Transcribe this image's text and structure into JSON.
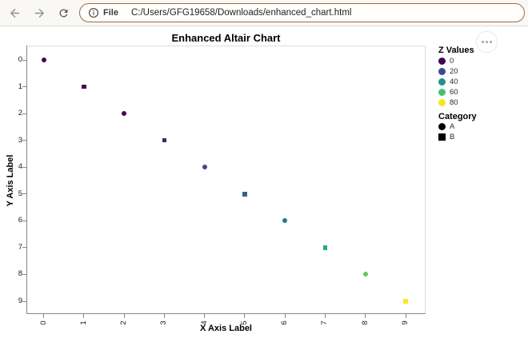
{
  "browser": {
    "toolbar": {
      "icons": {
        "back": "←",
        "forward": "→",
        "refresh": "⟳"
      },
      "address_bar": {
        "scheme_icon": "ⓘ",
        "scheme_label": "File",
        "url": "C:/Users/GFG19658/Downloads/enhanced_chart.html",
        "border_color": "#9E6B44"
      }
    }
  },
  "chart_actions": {
    "icon": "···",
    "name": "vega-options-menu"
  },
  "chart_data": {
    "type": "scatter",
    "title": "Enhanced Altair Chart",
    "xlabel": "X Axis Label",
    "ylabel": "Y Axis Label",
    "x_ticks": [
      "0",
      "1",
      "2",
      "3",
      "4",
      "5",
      "6",
      "7",
      "8",
      "9"
    ],
    "y_ticks": [
      "0",
      "1",
      "2",
      "3",
      "4",
      "5",
      "6",
      "7",
      "8",
      "9"
    ],
    "layout": {
      "y_inverted": true,
      "grid": false,
      "legend_position": "right",
      "x_tick_label_angle": -90,
      "view_border_color": "#dddddd",
      "axis_color": "#888888"
    },
    "points": [
      {
        "x": 0,
        "y": 0,
        "category": "A",
        "shape": "circle",
        "color": "#440154"
      },
      {
        "x": 1,
        "y": 1,
        "category": "B",
        "shape": "square",
        "color": "#450559"
      },
      {
        "x": 2,
        "y": 2,
        "category": "A",
        "shape": "circle",
        "color": "#46085C"
      },
      {
        "x": 3,
        "y": 3,
        "category": "B",
        "shape": "square",
        "color": "#482475"
      },
      {
        "x": 4,
        "y": 4,
        "category": "A",
        "shape": "circle",
        "color": "#404688"
      },
      {
        "x": 5,
        "y": 5,
        "category": "B",
        "shape": "square",
        "color": "#35608D"
      },
      {
        "x": 6,
        "y": 6,
        "category": "A",
        "shape": "circle",
        "color": "#2A788E"
      },
      {
        "x": 7,
        "y": 7,
        "category": "B",
        "shape": "square",
        "color": "#27AD81"
      },
      {
        "x": 8,
        "y": 8,
        "category": "A",
        "shape": "circle",
        "color": "#5BC863"
      },
      {
        "x": 9,
        "y": 9,
        "category": "B",
        "shape": "square",
        "color": "#FBE723"
      }
    ],
    "legends": [
      {
        "title": "Z Values",
        "items": [
          {
            "label": "0",
            "shape": "circle",
            "color": "#440154"
          },
          {
            "label": "20",
            "shape": "circle",
            "color": "#3D4E8A"
          },
          {
            "label": "40",
            "shape": "circle",
            "color": "#21918C"
          },
          {
            "label": "60",
            "shape": "circle",
            "color": "#4AC16D"
          },
          {
            "label": "80",
            "shape": "circle",
            "color": "#F8E621"
          }
        ]
      },
      {
        "title": "Category",
        "items": [
          {
            "label": "A",
            "shape": "circle",
            "color": "#000000"
          },
          {
            "label": "B",
            "shape": "square",
            "color": "#000000"
          }
        ]
      }
    ]
  }
}
